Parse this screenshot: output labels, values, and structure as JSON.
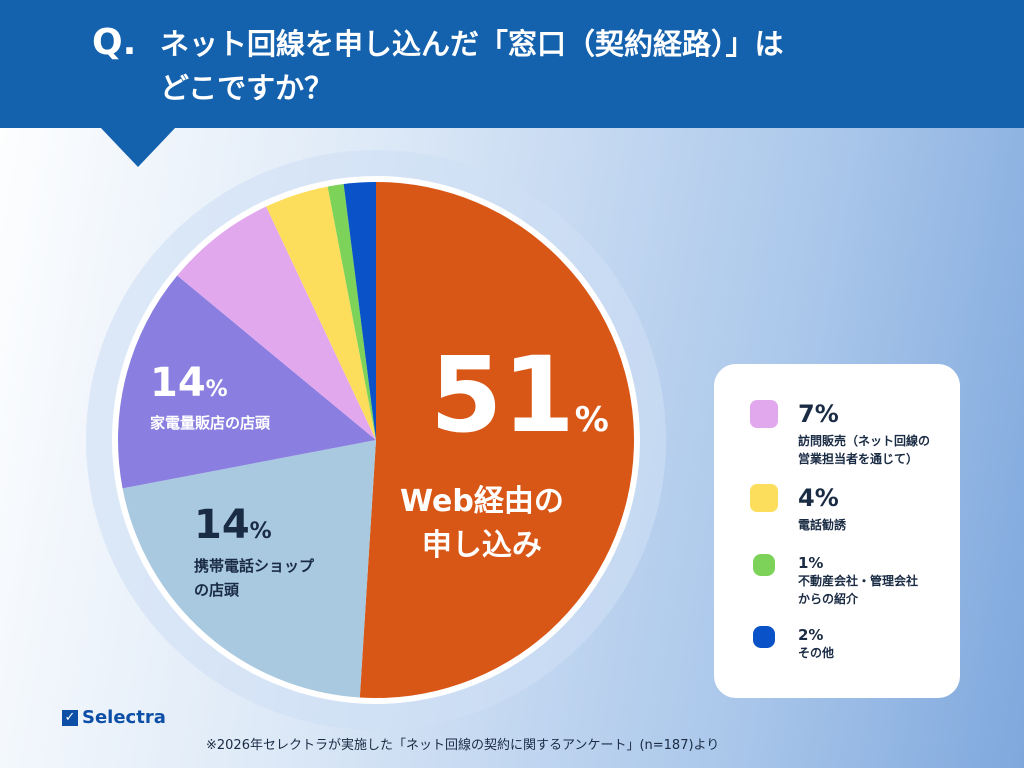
{
  "header": {
    "q": "Q.",
    "title_line1": "ネット回線を申し込んだ「窓口（契約経路）」は",
    "title_line2": "どこですか？"
  },
  "chart_data": {
    "type": "pie",
    "title": "ネット回線を申し込んだ「窓口（契約経路）」はどこですか？",
    "categories": [
      "Web経由の申し込み",
      "携帯電話ショップの店頭",
      "家電量販店の店頭",
      "訪問販売（ネット回線の営業担当者を通じて）",
      "電話勧誘",
      "不動産会社・管理会社からの紹介",
      "その他"
    ],
    "values": [
      51,
      14,
      14,
      7,
      4,
      1,
      2
    ],
    "unit": "%",
    "colors": [
      "#d95716",
      "#a9c9e0",
      "#8a7fe0",
      "#e2a8ee",
      "#fddd5c",
      "#7dd35a",
      "#0a52c7"
    ],
    "legend_placement": "right"
  },
  "labels": {
    "web": {
      "value": "51",
      "unit": "%",
      "line1": "Web経由の",
      "line2": "申し込み"
    },
    "mobile": {
      "value": "14",
      "unit": "%",
      "line1": "携帯電話ショップ",
      "line2": "の店頭"
    },
    "electronics": {
      "value": "14",
      "unit": "%",
      "line1": "家電量販店の店頭"
    }
  },
  "legend": [
    {
      "pct": "7%",
      "line1": "訪問販売（ネット回線の",
      "line2": "営業担当者を通じて）",
      "color": "#e2a8ee"
    },
    {
      "pct": "4%",
      "line1": "電話勧誘",
      "line2": "",
      "color": "#fddd5c"
    },
    {
      "pct": "1%",
      "line1": "不動産会社・管理会社",
      "line2": "からの紹介",
      "color": "#7dd35a"
    },
    {
      "pct": "2%",
      "line1": "その他",
      "line2": "",
      "color": "#0a52c7"
    }
  ],
  "logo": "Selectra",
  "footnote": "※2026年セレクトラが実施した「ネット回線の契約に関するアンケート」(n=187)より"
}
